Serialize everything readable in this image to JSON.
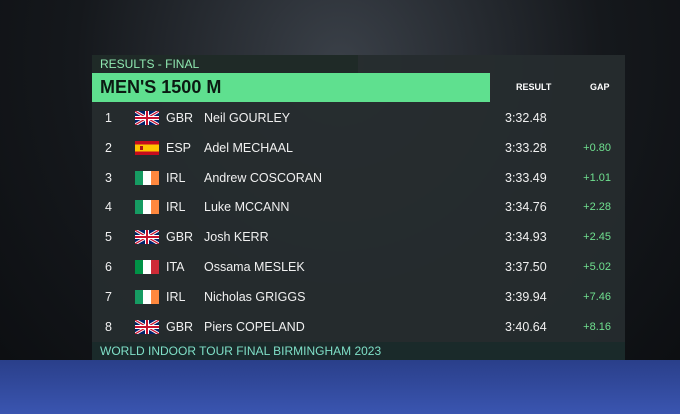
{
  "header": {
    "label": "RESULTS - FINAL",
    "title": "MEN'S 1500 M"
  },
  "columns": [
    "RESULT",
    "GAP"
  ],
  "rows": [
    {
      "rank": 1,
      "country": "GBR",
      "name": "Neil GOURLEY",
      "result": "3:32.48"
    },
    {
      "rank": 2,
      "country": "ESP",
      "name": "Adel MECHAAL",
      "result": "3:33.28",
      "gap": "+0.80"
    },
    {
      "rank": 3,
      "country": "IRL",
      "name": "Andrew COSCORAN",
      "result": "3:33.49",
      "gap": "+1.01"
    },
    {
      "rank": 4,
      "country": "IRL",
      "name": "Luke MCCANN",
      "result": "3:34.76",
      "gap": "+2.28"
    },
    {
      "rank": 5,
      "country": "GBR",
      "name": "Josh KERR",
      "result": "3:34.93",
      "gap": "+2.45"
    },
    {
      "rank": 6,
      "country": "ITA",
      "name": "Ossama MESLEK",
      "result": "3:37.50",
      "gap": "+5.02"
    },
    {
      "rank": 7,
      "country": "IRL",
      "name": "Nicholas GRIGGS",
      "result": "3:39.94",
      "gap": "+7.46"
    },
    {
      "rank": 8,
      "country": "GBR",
      "name": "Piers COPELAND",
      "result": "3:40.64",
      "gap": "+8.16"
    }
  ],
  "footer": "WORLD INDOOR TOUR FINAL BIRMINGHAM 2023"
}
